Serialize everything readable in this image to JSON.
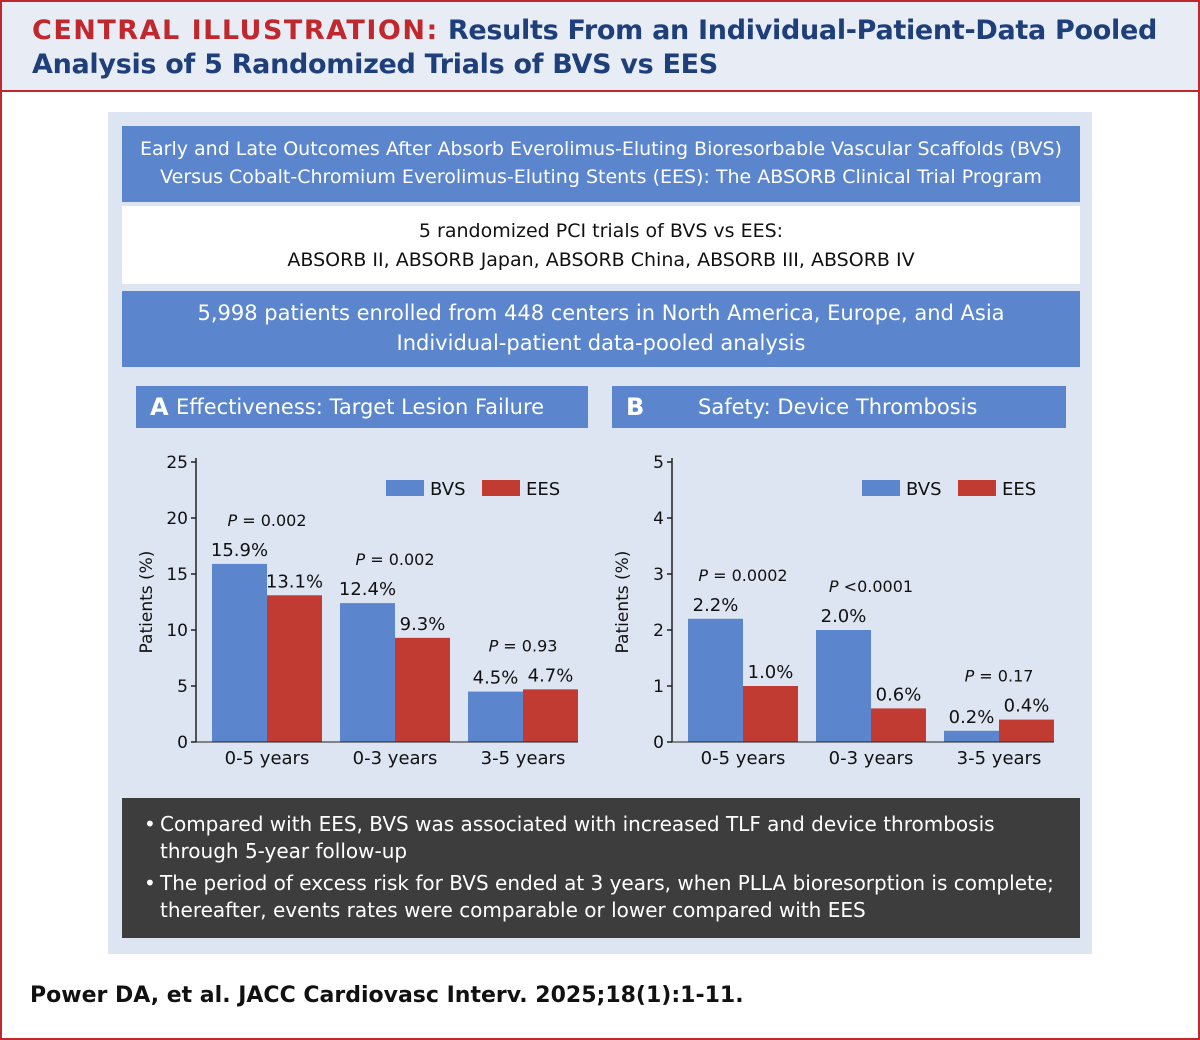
{
  "header": {
    "kicker": "CENTRAL ILLUSTRATION:",
    "title_line1": "Results From an Individual-Patient-Data Pooled",
    "title_line2": "Analysis of 5 Randomized Trials of BVS vs EES"
  },
  "top_box": {
    "line1": "Early and Late Outcomes After Absorb Everolimus-Eluting Bioresorbable Vascular Scaffolds (BVS)",
    "line2": "Versus Cobalt-Chromium Everolimus-Eluting Stents (EES): The ABSORB Clinical Trial Program"
  },
  "trials_box": {
    "line1": "5 randomized PCI trials of BVS vs EES:",
    "line2": "ABSORB II, ABSORB Japan, ABSORB China, ABSORB III, ABSORB IV"
  },
  "patients_box": {
    "line1": "5,998 patients enrolled from 448 centers in North America, Europe, and Asia",
    "line2": "Individual-patient data-pooled analysis"
  },
  "colors": {
    "bvs": "#5b85cc",
    "ees": "#c23b32",
    "accent_red": "#c0282d",
    "title_blue": "#1f3f7a"
  },
  "chart_data": [
    {
      "type": "bar",
      "panel_letter": "A",
      "title": "Effectiveness: Target Lesion Failure",
      "ylabel": "Patients (%)",
      "xlabel": "",
      "ylim": [
        0,
        25
      ],
      "yticks": [
        0,
        5,
        10,
        15,
        20,
        25
      ],
      "categories": [
        "0-5 years",
        "0-3 years",
        "3-5 years"
      ],
      "series": [
        {
          "name": "BVS",
          "values": [
            15.9,
            12.4,
            4.5
          ],
          "labels": [
            "15.9%",
            "12.4%",
            "4.5%"
          ]
        },
        {
          "name": "EES",
          "values": [
            13.1,
            9.3,
            4.7
          ],
          "labels": [
            "13.1%",
            "9.3%",
            "4.7%"
          ]
        }
      ],
      "p_values": [
        {
          "prefix": "P",
          "text": " = 0.002"
        },
        {
          "prefix": "P",
          "text": " = 0.002"
        },
        {
          "prefix": "P",
          "text": " = 0.93"
        }
      ],
      "legend": "top-right"
    },
    {
      "type": "bar",
      "panel_letter": "B",
      "title": "Safety: Device Thrombosis",
      "ylabel": "Patients (%)",
      "xlabel": "",
      "ylim": [
        0,
        5
      ],
      "yticks": [
        0,
        1,
        2,
        3,
        4,
        5
      ],
      "categories": [
        "0-5 years",
        "0-3 years",
        "3-5 years"
      ],
      "series": [
        {
          "name": "BVS",
          "values": [
            2.2,
            2.0,
            0.2
          ],
          "labels": [
            "2.2%",
            "2.0%",
            "0.2%"
          ]
        },
        {
          "name": "EES",
          "values": [
            1.0,
            0.6,
            0.4
          ],
          "labels": [
            "1.0%",
            "0.6%",
            "0.4%"
          ]
        }
      ],
      "p_values": [
        {
          "prefix": "P",
          "text": " = 0.0002"
        },
        {
          "prefix": "P",
          "text": " <0.0001"
        },
        {
          "prefix": "P",
          "text": " = 0.17"
        }
      ],
      "legend": "top-right"
    }
  ],
  "summary": {
    "bullet_glyph": "•",
    "bullets": [
      "Compared with EES, BVS was associated with increased TLF and device thrombosis through 5-year follow-up",
      "The period of excess risk for BVS ended at 3 years, when PLLA bioresorption is complete; thereafter, events rates were comparable or lower compared with EES"
    ]
  },
  "citation": "Power DA, et al. JACC Cardiovasc Interv. 2025;18(1):1-11."
}
